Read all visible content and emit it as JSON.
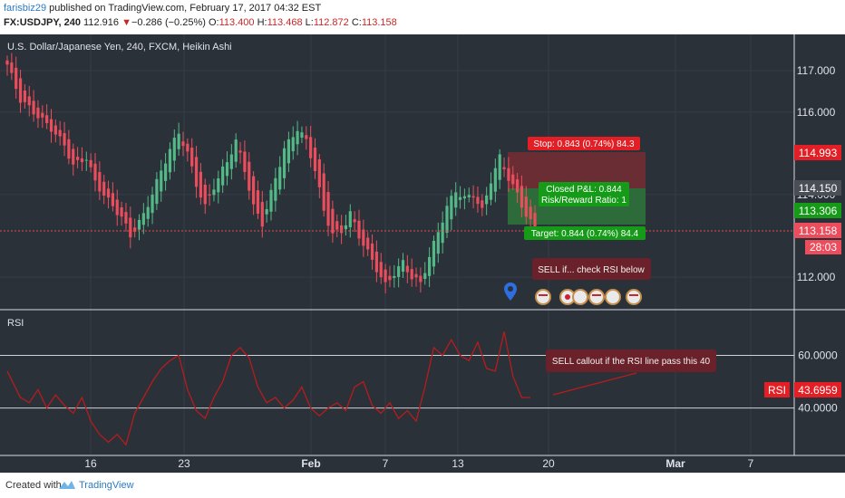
{
  "header": {
    "username": "farisbiz29",
    "published_text": "published on TradingView.com, February 17, 2017 04:32 EST",
    "symbol": "FX:USDJPY, 240",
    "last": "112.916",
    "change_arrow": "▼",
    "change": "−0.286 (−0.25%)",
    "open_label": "O:",
    "open": "113.400",
    "high_label": "H:",
    "high": "113.468",
    "low_label": "L:",
    "low": "112.872",
    "close_label": "C:",
    "close": "113.158"
  },
  "chart_title": "U.S. Dollar/Japanese Yen, 240, FXCM, Heikin Ashi",
  "rsi_pane_label": "RSI",
  "trade": {
    "stop_label": "Stop: 0.843 (0.74%) 84.3",
    "target_label": "Target: 0.844 (0.74%) 84.4",
    "closed_pl": "Closed P&L: 0.844",
    "risk_reward": "Risk/Reward Ratio: 1"
  },
  "notes": {
    "sell_if": "SELL if... check RSI below",
    "rsi_callout": "SELL callout if the RSI line pass this 40"
  },
  "price_badges": {
    "stop": "114.993",
    "entry": "114.150",
    "target": "113.306",
    "current": "113.158",
    "countdown": "28:03"
  },
  "rsi_badge": {
    "label": "RSI",
    "value": "43.6959"
  },
  "footer": {
    "created": "Created with",
    "brand": "TradingView"
  },
  "colors": {
    "background": "#2b3139",
    "up": "#53b987",
    "down": "#eb4d5c",
    "rsi_line": "#b71c1c",
    "stop_zone": "#6a2d34",
    "target_zone": "#2e6b3a",
    "badge_red": "#e31e24",
    "badge_green": "#159b18",
    "badge_grey": "#4a4f57"
  },
  "chart_data": [
    {
      "type": "candlestick",
      "title": "U.S. Dollar/Japanese Yen, 240, FXCM, Heikin Ashi",
      "y_ticks": [
        "117.000",
        "116.000",
        "114.000",
        "112.000"
      ],
      "x_ticks": [
        "16",
        "23",
        "Feb",
        "7",
        "13",
        "20",
        "Mar",
        "7"
      ],
      "ylim": [
        111.3,
        117.75
      ],
      "close_path": [
        [
          0,
          117.15
        ],
        [
          3,
          116.3
        ],
        [
          7,
          115.9
        ],
        [
          10,
          115.6
        ],
        [
          13,
          115.2
        ],
        [
          15,
          114.7
        ],
        [
          18,
          114.9
        ],
        [
          20,
          114.3
        ],
        [
          23,
          113.85
        ],
        [
          26,
          113.45
        ],
        [
          28,
          113.0
        ],
        [
          31,
          113.5
        ],
        [
          34,
          114.3
        ],
        [
          37,
          115.1
        ],
        [
          39,
          115.5
        ],
        [
          41,
          115.0
        ],
        [
          43,
          114.25
        ],
        [
          45,
          113.7
        ],
        [
          47,
          114.2
        ],
        [
          50,
          114.8
        ],
        [
          52,
          115.3
        ],
        [
          54,
          114.6
        ],
        [
          56,
          113.7
        ],
        [
          58,
          113.3
        ],
        [
          61,
          114.4
        ],
        [
          63,
          115.1
        ],
        [
          66,
          115.6
        ],
        [
          68,
          115.3
        ],
        [
          70,
          114.6
        ],
        [
          72,
          113.6
        ],
        [
          74,
          113.05
        ],
        [
          76,
          113.1
        ],
        [
          78,
          113.55
        ],
        [
          80,
          113.0
        ],
        [
          82,
          112.6
        ],
        [
          84,
          112.2
        ],
        [
          86,
          111.8
        ],
        [
          88,
          112.1
        ],
        [
          90,
          112.35
        ],
        [
          92,
          112.0
        ],
        [
          94,
          111.85
        ],
        [
          96,
          112.5
        ],
        [
          98,
          113.1
        ],
        [
          100,
          113.7
        ],
        [
          102,
          114.1
        ],
        [
          104,
          113.9
        ],
        [
          106,
          114.0
        ],
        [
          108,
          113.6
        ],
        [
          110,
          114.35
        ],
        [
          112,
          114.9
        ],
        [
          114,
          114.4
        ],
        [
          116,
          114.0
        ],
        [
          118,
          113.5
        ],
        [
          120,
          113.16
        ]
      ]
    },
    {
      "type": "line",
      "name": "RSI",
      "y_ticks": [
        "60.0000",
        "40.0000"
      ],
      "ylim": [
        23,
        76
      ],
      "levels": [
        60,
        40
      ],
      "x": [
        0,
        3,
        5,
        7,
        9,
        11,
        13,
        15,
        17,
        19,
        21,
        23,
        25,
        27,
        29,
        31,
        33,
        35,
        37,
        39,
        41,
        43,
        45,
        47,
        49,
        51,
        53,
        55,
        57,
        59,
        61,
        63,
        65,
        67,
        69,
        71,
        73,
        75,
        77,
        79,
        81,
        83,
        85,
        87,
        89,
        91,
        93,
        95,
        97,
        99,
        101,
        103,
        105,
        107,
        109,
        111,
        113,
        115,
        117,
        119
      ],
      "values": [
        54,
        44,
        42,
        47,
        40,
        45,
        41,
        38,
        44,
        35,
        30,
        27,
        30,
        26,
        38,
        44,
        50,
        55,
        58,
        60,
        47,
        39,
        36,
        44,
        50,
        60,
        63,
        59,
        48,
        42,
        44,
        40,
        43,
        48,
        40,
        37,
        40,
        42,
        39,
        48,
        50,
        41,
        38,
        42,
        36,
        39,
        35,
        48,
        63,
        60,
        66,
        60,
        58,
        65,
        55,
        54,
        69,
        52,
        44,
        44
      ]
    }
  ]
}
